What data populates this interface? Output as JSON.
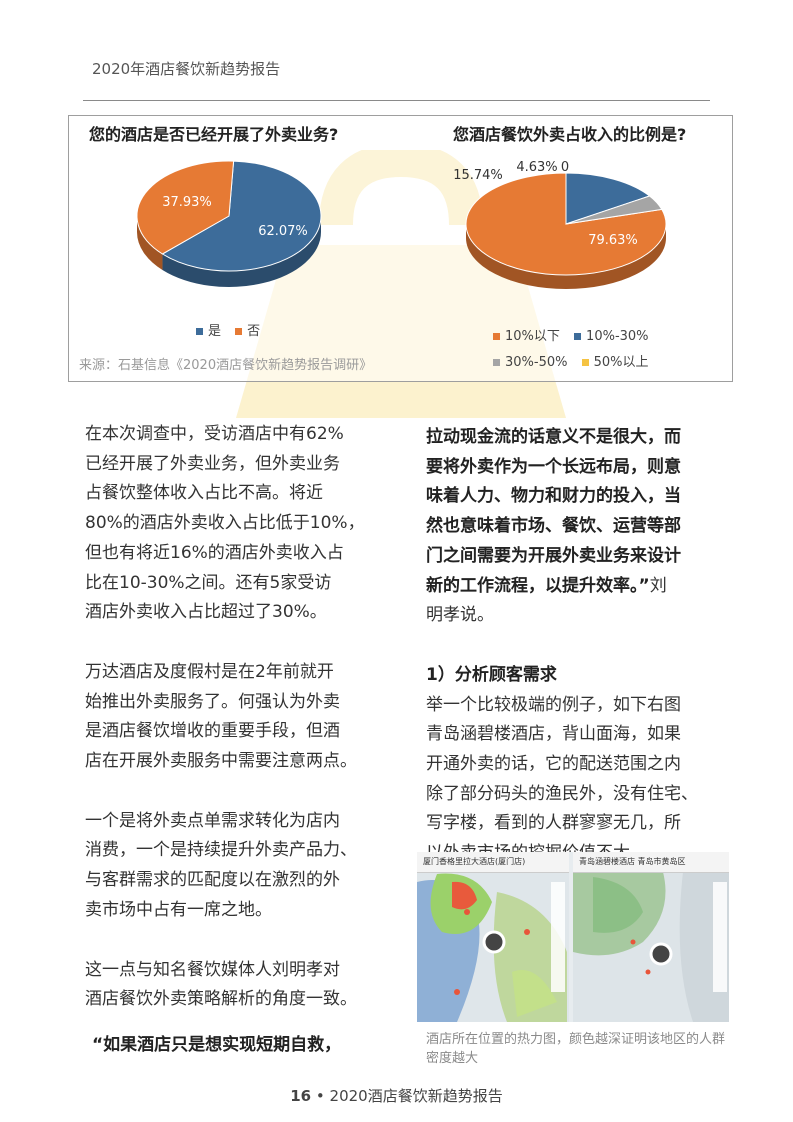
{
  "header": {
    "title": "2020年酒店餐饮新趋势报告"
  },
  "colors": {
    "blue": "#3d6c9a",
    "orange": "#e67a34",
    "gray": "#a5a5a5",
    "yellow": "#f5c342"
  },
  "charts": {
    "source": "来源：石基信息《2020酒店餐饮新趋势报告调研》",
    "left": {
      "title": "您的酒店是否已经开展了外卖业务?",
      "labels": [
        "62.07%",
        "37.93%"
      ],
      "legend": [
        "是",
        "否"
      ]
    },
    "right": {
      "title": "您酒店餐饮外卖占收入的比例是?",
      "labels": [
        "79.63%",
        "15.74%",
        "4.63%",
        "0"
      ],
      "legend": [
        "10%以下",
        "10%-30%",
        "30%-50%",
        "50%以上"
      ]
    }
  },
  "chart_data": [
    {
      "type": "pie",
      "title": "您的酒店是否已经开展了外卖业务?",
      "categories": [
        "是",
        "否"
      ],
      "values": [
        62.07,
        37.93
      ]
    },
    {
      "type": "pie",
      "title": "您酒店餐饮外卖占收入的比例是?",
      "categories": [
        "10%以下",
        "10%-30%",
        "30%-50%",
        "50%以上"
      ],
      "values": [
        79.63,
        15.74,
        4.63,
        0
      ]
    }
  ],
  "left_column": {
    "p1": [
      "在本次调查中，受访酒店中有62%",
      "已经开展了外卖业务，但外卖业务",
      "占餐饮整体收入占比不高。将近",
      "80%的酒店外卖收入占比低于10%，",
      "但也有将近16%的酒店外卖收入占",
      "比在10-30%之间。还有5家受访",
      "酒店外卖收入占比超过了30%。"
    ],
    "p2": [
      "万达酒店及度假村是在2年前就开",
      "始推出外卖服务了。何强认为外卖",
      "是酒店餐饮增收的重要手段，但酒",
      "店在开展外卖服务中需要注意两点。"
    ],
    "p3": [
      "一个是将外卖点单需求转化为店内",
      "消费，一个是持续提升外卖产品力、",
      "与客群需求的匹配度以在激烈的外",
      "卖市场中占有一席之地。"
    ],
    "p4": [
      "这一点与知名餐饮媒体人刘明孝对",
      "酒店餐饮外卖策略解析的角度一致。"
    ],
    "quote_start": "“如果酒店只是想实现短期自救，"
  },
  "right_column": {
    "quote_lines": [
      "拉动现金流的话意义不是很大，而",
      "要将外卖作为一个长远布局，则意",
      "味着人力、物力和财力的投入，当",
      "然也意味着市场、餐饮、运营等部",
      "门之间需要为开展外卖业务来设计"
    ],
    "quote_last_bold": "新的工作流程，以提升效率。”",
    "quote_last_tail": "刘",
    "quote_after": "明孝说。",
    "subheading": "1）分析顾客需求",
    "p1": [
      "举一个比较极端的例子，如下右图",
      "青岛涵碧楼酒店，背山面海，如果",
      "开通外卖的话，它的配送范围之内",
      "除了部分码头的渔民外，没有住宅、",
      "写字楼，看到的人群寥寥无几，所",
      "以外卖市场的挖掘价值不大。"
    ]
  },
  "maps": {
    "left_title": "厦门香格里拉大酒店(厦门店)",
    "right_title": "青岛涵碧楼酒店 青岛市黄岛区",
    "caption": "酒店所在位置的热力图，颜色越深证明该地区的人群密度越大"
  },
  "footer": {
    "page": "16",
    "sep": "•",
    "title": "2020酒店餐饮新趋势报告"
  }
}
